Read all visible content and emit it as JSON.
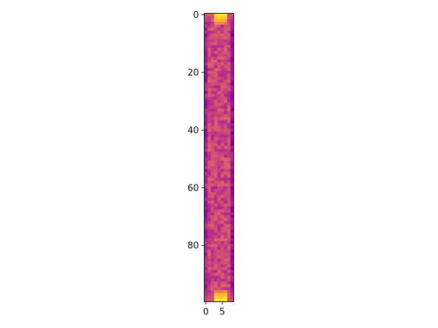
{
  "chart_data": {
    "type": "heatmap",
    "title": "",
    "xlabel": "",
    "ylabel": "",
    "colormap": "plasma",
    "n_rows": 100,
    "n_cols": 9,
    "xlim": [
      -0.5,
      8.5
    ],
    "ylim": [
      99.5,
      -0.5
    ],
    "x_ticks": [
      0,
      5
    ],
    "x_tick_labels": [
      "0",
      "5"
    ],
    "y_ticks": [
      0,
      20,
      40,
      60,
      80
    ],
    "y_tick_labels": [
      "0",
      "20",
      "40",
      "60",
      "80"
    ],
    "row_profile": {
      "typical_value": 0.5,
      "top_rows_high": [
        0.95,
        0.9,
        0.82,
        0.7
      ],
      "bottom_rows_high": [
        0.7,
        0.82,
        0.92,
        0.97
      ],
      "left_edge_low": 0.38,
      "right_edge_low": 0.32
    }
  }
}
